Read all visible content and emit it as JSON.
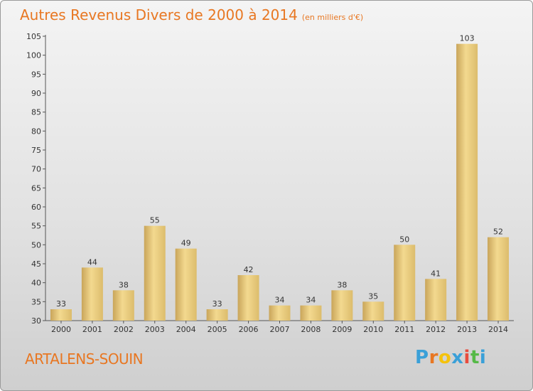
{
  "header": {
    "title": "Autres Revenus Divers de 2000 à 2014",
    "unit": "(en milliers d'€)"
  },
  "footer": {
    "place": "ARTALENS-SOUIN",
    "brand_letters": [
      "P",
      "r",
      "o",
      "x",
      "i",
      "t",
      "i"
    ],
    "brand_colors": [
      "#3aa0d8",
      "#e87722",
      "#f4c20d",
      "#3aa0d8",
      "#e84c3d",
      "#55b947",
      "#3aa0d8"
    ]
  },
  "colors": {
    "accent": "#e87722",
    "bar_light": "#f6e09a",
    "bar_dark": "#c8a456"
  },
  "chart_data": {
    "type": "bar",
    "title": "Autres Revenus Divers de 2000 à 2014",
    "subtitle": "(en milliers d'€)",
    "categories": [
      "2000",
      "2001",
      "2002",
      "2003",
      "2004",
      "2005",
      "2006",
      "2007",
      "2008",
      "2009",
      "2010",
      "2011",
      "2012",
      "2013",
      "2014"
    ],
    "values": [
      33,
      44,
      38,
      55,
      49,
      33,
      42,
      34,
      34,
      38,
      35,
      50,
      41,
      103,
      52
    ],
    "ylim": [
      30,
      105
    ],
    "yticks": [
      30,
      35,
      40,
      45,
      50,
      55,
      60,
      65,
      70,
      75,
      80,
      85,
      90,
      95,
      100,
      105
    ],
    "grid": false,
    "legend": "none"
  }
}
